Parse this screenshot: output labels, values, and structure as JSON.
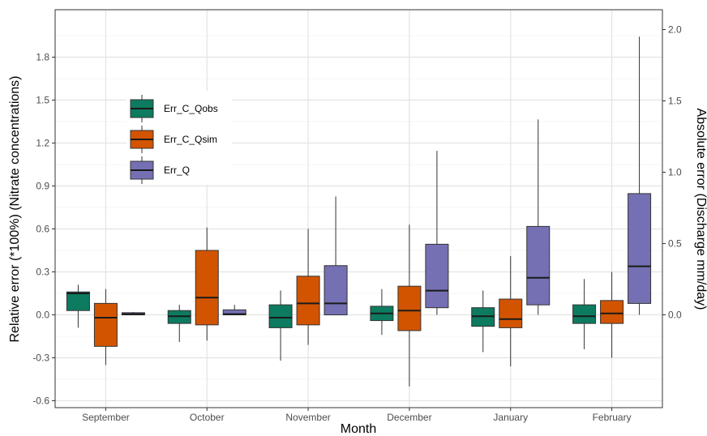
{
  "chart_data": {
    "type": "box",
    "xlabel": "Month",
    "ylabel_left": "Relative error (*100%) (Nitrate concentrations)",
    "ylabel_right": "Absolute error (Discharge mm/day)",
    "categories": [
      "September",
      "October",
      "November",
      "December",
      "January",
      "February"
    ],
    "ylim_left": [
      -0.62,
      2.02
    ],
    "yticks_left": [
      "1.8",
      "1.5",
      "1.2",
      "0.9",
      "0.6",
      "0.3",
      "0.0",
      "-0.3",
      "-0.6"
    ],
    "ylim_right": [
      -0.62,
      2.02
    ],
    "yticks_right": [
      "2.0",
      "1.5",
      "1.0",
      "0.5",
      "0.0"
    ],
    "grid": true,
    "legend_position": "top-left (inside)",
    "series": [
      {
        "name": "Err_C_Qobs",
        "color": "#0d7b5f",
        "axis": "left",
        "boxes": [
          {
            "min": -0.09,
            "q1": 0.03,
            "median": 0.15,
            "q3": 0.16,
            "max": 0.21
          },
          {
            "min": -0.19,
            "q1": -0.06,
            "median": -0.01,
            "q3": 0.03,
            "max": 0.07
          },
          {
            "min": -0.32,
            "q1": -0.09,
            "median": -0.02,
            "q3": 0.07,
            "max": 0.17
          },
          {
            "min": -0.14,
            "q1": -0.04,
            "median": 0.01,
            "q3": 0.06,
            "max": 0.18
          },
          {
            "min": -0.26,
            "q1": -0.08,
            "median": -0.01,
            "q3": 0.05,
            "max": 0.17
          },
          {
            "min": -0.24,
            "q1": -0.06,
            "median": -0.01,
            "q3": 0.07,
            "max": 0.25
          }
        ]
      },
      {
        "name": "Err_C_Qsim",
        "color": "#d35400",
        "axis": "left",
        "boxes": [
          {
            "min": -0.35,
            "q1": -0.22,
            "median": -0.02,
            "q3": 0.08,
            "max": 0.18
          },
          {
            "min": -0.18,
            "q1": -0.07,
            "median": 0.12,
            "q3": 0.45,
            "max": 0.61
          },
          {
            "min": -0.21,
            "q1": -0.07,
            "median": 0.08,
            "q3": 0.27,
            "max": 0.6
          },
          {
            "min": -0.5,
            "q1": -0.11,
            "median": 0.03,
            "q3": 0.2,
            "max": 0.63
          },
          {
            "min": -0.36,
            "q1": -0.09,
            "median": -0.03,
            "q3": 0.11,
            "max": 0.41
          },
          {
            "min": -0.3,
            "q1": -0.06,
            "median": 0.01,
            "q3": 0.1,
            "max": 0.3
          }
        ]
      },
      {
        "name": "Err_Q",
        "color": "#7570b3",
        "axis": "right",
        "boxes": [
          {
            "min": 0.0,
            "q1": 0.0,
            "median": 0.005,
            "q3": 0.015,
            "max": 0.02
          },
          {
            "min": 0.0,
            "q1": 0.0,
            "median": 0.005,
            "q3": 0.035,
            "max": 0.07
          },
          {
            "min": 0.0,
            "q1": 0.0,
            "median": 0.08,
            "q3": 0.345,
            "max": 0.83
          },
          {
            "min": 0.0,
            "q1": 0.05,
            "median": 0.17,
            "q3": 0.495,
            "max": 1.15
          },
          {
            "min": 0.0,
            "q1": 0.07,
            "median": 0.26,
            "q3": 0.62,
            "max": 1.37
          },
          {
            "min": 0.0,
            "q1": 0.08,
            "median": 0.34,
            "q3": 0.85,
            "max": 1.95
          }
        ]
      }
    ]
  }
}
